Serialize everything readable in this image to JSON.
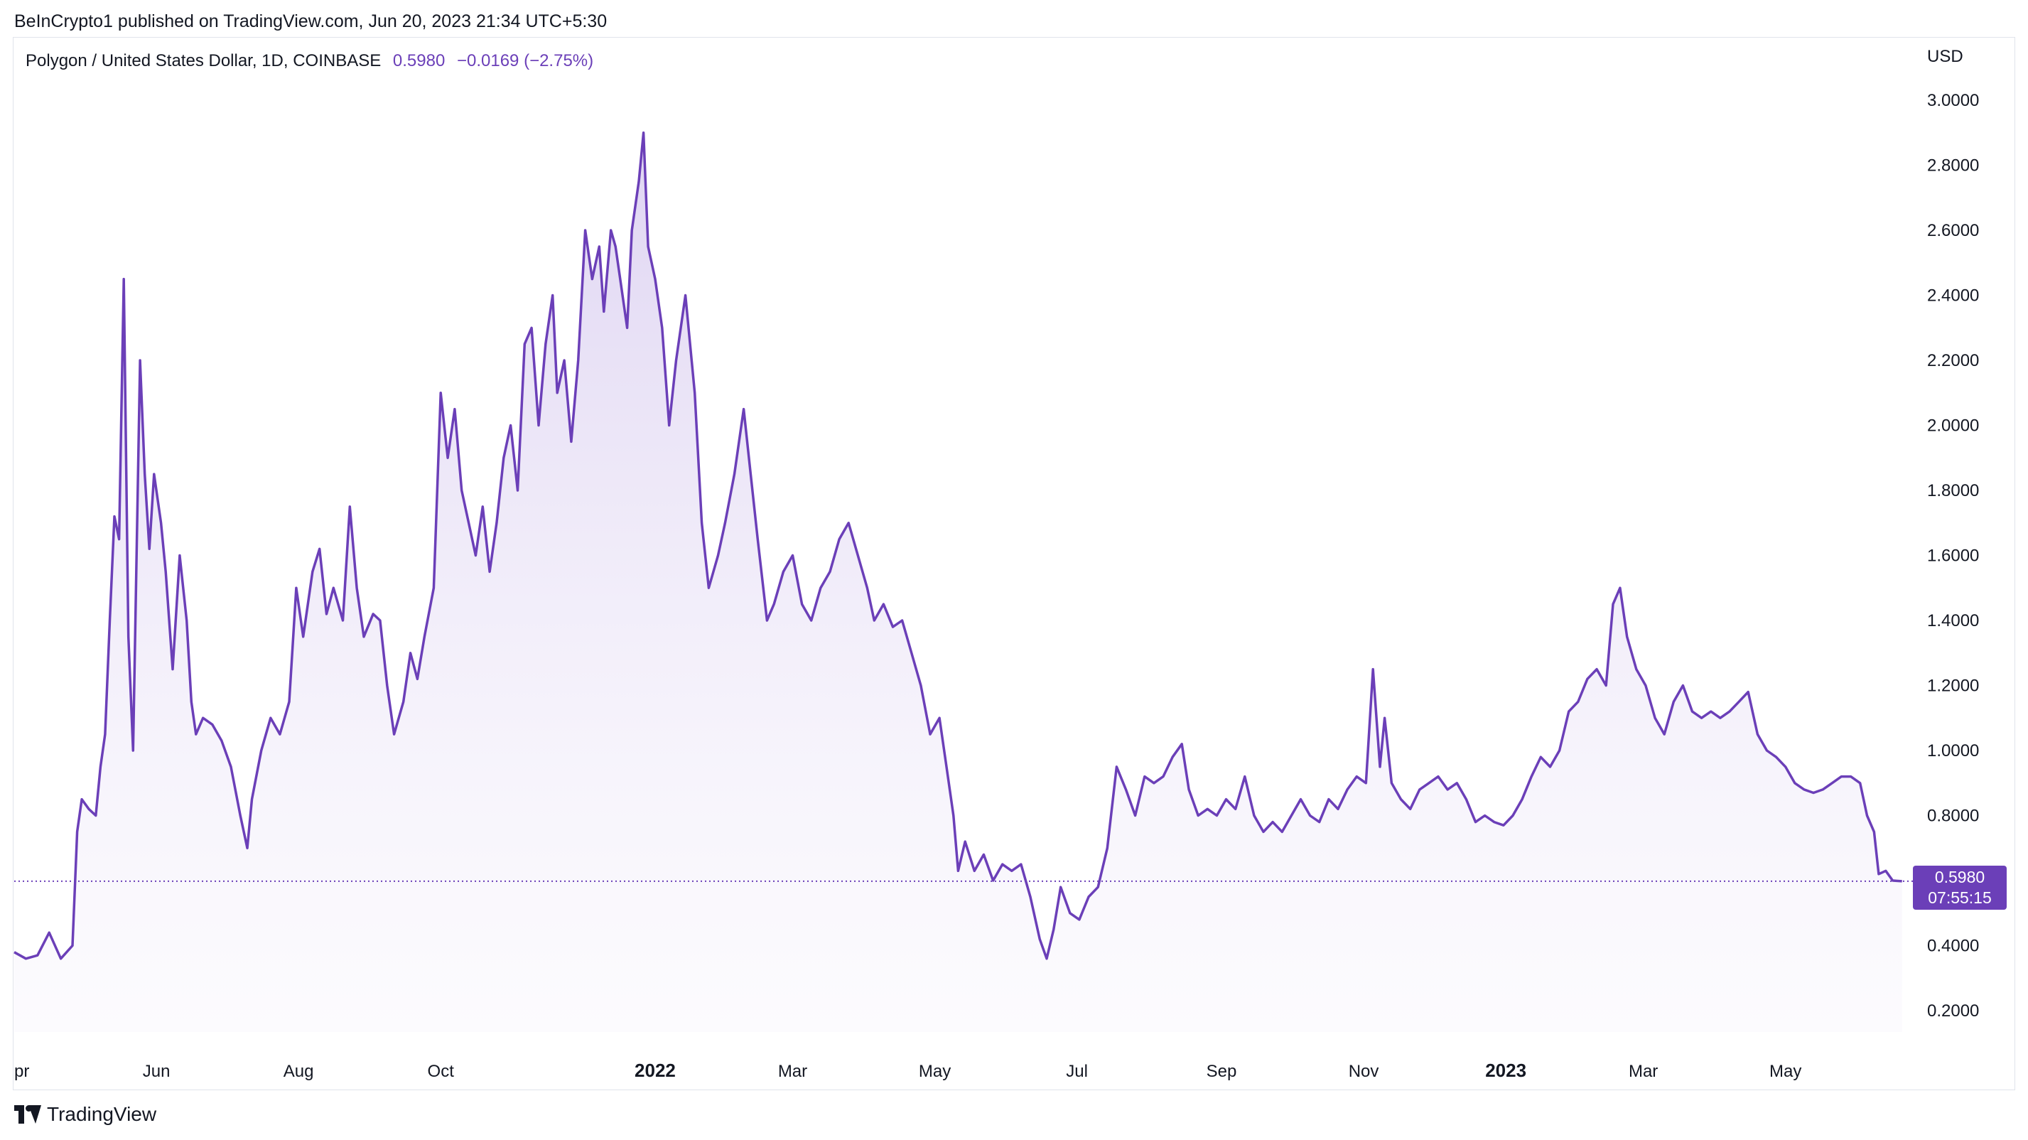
{
  "header": {
    "published": "BeInCrypto1 published on TradingView.com, Jun 20, 2023 21:34 UTC+5:30"
  },
  "legend": {
    "symbol": "Polygon / United States Dollar, 1D, COINBASE",
    "last": "0.5980",
    "change": "−0.0169 (−2.75%)"
  },
  "price_axis": {
    "currency": "USD"
  },
  "last_price_tag": {
    "price": "0.5980",
    "countdown": "07:55:15"
  },
  "brand": {
    "name": "TradingView",
    "logo_icon": "tradingview-logo-icon"
  },
  "colors": {
    "line": "#6b3fb8",
    "fill": "#ede7f6",
    "axis_text": "#131722"
  },
  "chart_data": {
    "type": "area",
    "title": "Polygon / United States Dollar, 1D, COINBASE",
    "xlabel": "",
    "ylabel": "",
    "ylim": [
      0.12,
      3.1
    ],
    "y_ticks": [
      "3.0000",
      "2.8000",
      "2.6000",
      "2.4000",
      "2.2000",
      "2.0000",
      "1.8000",
      "1.6000",
      "1.4000",
      "1.2000",
      "1.0000",
      "0.8000",
      "0.6000",
      "0.4000",
      "0.2000"
    ],
    "x_ticks": [
      {
        "label": "pr",
        "x": "2021-04-01",
        "bold": false
      },
      {
        "label": "Jun",
        "x": "2021-06-01",
        "bold": false
      },
      {
        "label": "Aug",
        "x": "2021-08-01",
        "bold": false
      },
      {
        "label": "Oct",
        "x": "2021-10-01",
        "bold": false
      },
      {
        "label": "2022",
        "x": "2022-01-01",
        "bold": true
      },
      {
        "label": "Mar",
        "x": "2022-03-01",
        "bold": false
      },
      {
        "label": "May",
        "x": "2022-05-01",
        "bold": false
      },
      {
        "label": "Jul",
        "x": "2022-07-01",
        "bold": false
      },
      {
        "label": "Sep",
        "x": "2022-09-01",
        "bold": false
      },
      {
        "label": "Nov",
        "x": "2022-11-01",
        "bold": false
      },
      {
        "label": "2023",
        "x": "2023-01-01",
        "bold": true
      },
      {
        "label": "Mar",
        "x": "2023-03-01",
        "bold": false
      },
      {
        "label": "May",
        "x": "2023-05-01",
        "bold": false
      }
    ],
    "grid": false,
    "last_price_line": 0.598,
    "series": [
      {
        "name": "",
        "points": [
          [
            "2021-04-01",
            0.38
          ],
          [
            "2021-04-06",
            0.36
          ],
          [
            "2021-04-11",
            0.37
          ],
          [
            "2021-04-16",
            0.44
          ],
          [
            "2021-04-21",
            0.36
          ],
          [
            "2021-04-26",
            0.4
          ],
          [
            "2021-04-28",
            0.75
          ],
          [
            "2021-04-30",
            0.85
          ],
          [
            "2021-05-03",
            0.82
          ],
          [
            "2021-05-06",
            0.8
          ],
          [
            "2021-05-08",
            0.95
          ],
          [
            "2021-05-10",
            1.05
          ],
          [
            "2021-05-12",
            1.4
          ],
          [
            "2021-05-14",
            1.72
          ],
          [
            "2021-05-16",
            1.65
          ],
          [
            "2021-05-18",
            2.45
          ],
          [
            "2021-05-20",
            1.35
          ],
          [
            "2021-05-22",
            1.0
          ],
          [
            "2021-05-25",
            2.2
          ],
          [
            "2021-05-27",
            1.85
          ],
          [
            "2021-05-29",
            1.62
          ],
          [
            "2021-05-31",
            1.85
          ],
          [
            "2021-06-03",
            1.7
          ],
          [
            "2021-06-05",
            1.55
          ],
          [
            "2021-06-08",
            1.25
          ],
          [
            "2021-06-11",
            1.6
          ],
          [
            "2021-06-14",
            1.4
          ],
          [
            "2021-06-16",
            1.15
          ],
          [
            "2021-06-18",
            1.05
          ],
          [
            "2021-06-21",
            1.1
          ],
          [
            "2021-06-25",
            1.08
          ],
          [
            "2021-06-29",
            1.03
          ],
          [
            "2021-07-03",
            0.95
          ],
          [
            "2021-07-07",
            0.8
          ],
          [
            "2021-07-10",
            0.7
          ],
          [
            "2021-07-12",
            0.85
          ],
          [
            "2021-07-16",
            1.0
          ],
          [
            "2021-07-20",
            1.1
          ],
          [
            "2021-07-24",
            1.05
          ],
          [
            "2021-07-28",
            1.15
          ],
          [
            "2021-07-31",
            1.5
          ],
          [
            "2021-08-03",
            1.35
          ],
          [
            "2021-08-07",
            1.55
          ],
          [
            "2021-08-10",
            1.62
          ],
          [
            "2021-08-13",
            1.42
          ],
          [
            "2021-08-16",
            1.5
          ],
          [
            "2021-08-20",
            1.4
          ],
          [
            "2021-08-23",
            1.75
          ],
          [
            "2021-08-26",
            1.5
          ],
          [
            "2021-08-29",
            1.35
          ],
          [
            "2021-09-02",
            1.42
          ],
          [
            "2021-09-05",
            1.4
          ],
          [
            "2021-09-08",
            1.2
          ],
          [
            "2021-09-11",
            1.05
          ],
          [
            "2021-09-15",
            1.15
          ],
          [
            "2021-09-18",
            1.3
          ],
          [
            "2021-09-21",
            1.22
          ],
          [
            "2021-09-24",
            1.35
          ],
          [
            "2021-09-28",
            1.5
          ],
          [
            "2021-10-01",
            2.1
          ],
          [
            "2021-10-04",
            1.9
          ],
          [
            "2021-10-07",
            2.05
          ],
          [
            "2021-10-10",
            1.8
          ],
          [
            "2021-10-13",
            1.7
          ],
          [
            "2021-10-16",
            1.6
          ],
          [
            "2021-10-19",
            1.75
          ],
          [
            "2021-10-22",
            1.55
          ],
          [
            "2021-10-25",
            1.7
          ],
          [
            "2021-10-28",
            1.9
          ],
          [
            "2021-10-31",
            2.0
          ],
          [
            "2021-11-03",
            1.8
          ],
          [
            "2021-11-06",
            2.25
          ],
          [
            "2021-11-09",
            2.3
          ],
          [
            "2021-11-12",
            2.0
          ],
          [
            "2021-11-15",
            2.25
          ],
          [
            "2021-11-18",
            2.4
          ],
          [
            "2021-11-20",
            2.1
          ],
          [
            "2021-11-23",
            2.2
          ],
          [
            "2021-11-26",
            1.95
          ],
          [
            "2021-11-29",
            2.2
          ],
          [
            "2021-12-02",
            2.6
          ],
          [
            "2021-12-05",
            2.45
          ],
          [
            "2021-12-08",
            2.55
          ],
          [
            "2021-12-10",
            2.35
          ],
          [
            "2021-12-13",
            2.6
          ],
          [
            "2021-12-15",
            2.55
          ],
          [
            "2021-12-17",
            2.45
          ],
          [
            "2021-12-20",
            2.3
          ],
          [
            "2021-12-22",
            2.6
          ],
          [
            "2021-12-25",
            2.75
          ],
          [
            "2021-12-27",
            2.9
          ],
          [
            "2021-12-29",
            2.55
          ],
          [
            "2022-01-01",
            2.45
          ],
          [
            "2022-01-04",
            2.3
          ],
          [
            "2022-01-07",
            2.0
          ],
          [
            "2022-01-10",
            2.2
          ],
          [
            "2022-01-14",
            2.4
          ],
          [
            "2022-01-18",
            2.1
          ],
          [
            "2022-01-21",
            1.7
          ],
          [
            "2022-01-24",
            1.5
          ],
          [
            "2022-01-28",
            1.6
          ],
          [
            "2022-01-31",
            1.7
          ],
          [
            "2022-02-04",
            1.85
          ],
          [
            "2022-02-08",
            2.05
          ],
          [
            "2022-02-11",
            1.85
          ],
          [
            "2022-02-14",
            1.65
          ],
          [
            "2022-02-18",
            1.4
          ],
          [
            "2022-02-21",
            1.45
          ],
          [
            "2022-02-25",
            1.55
          ],
          [
            "2022-03-01",
            1.6
          ],
          [
            "2022-03-05",
            1.45
          ],
          [
            "2022-03-09",
            1.4
          ],
          [
            "2022-03-13",
            1.5
          ],
          [
            "2022-03-17",
            1.55
          ],
          [
            "2022-03-21",
            1.65
          ],
          [
            "2022-03-25",
            1.7
          ],
          [
            "2022-03-29",
            1.6
          ],
          [
            "2022-04-02",
            1.5
          ],
          [
            "2022-04-05",
            1.4
          ],
          [
            "2022-04-09",
            1.45
          ],
          [
            "2022-04-13",
            1.38
          ],
          [
            "2022-04-17",
            1.4
          ],
          [
            "2022-04-21",
            1.3
          ],
          [
            "2022-04-25",
            1.2
          ],
          [
            "2022-04-29",
            1.05
          ],
          [
            "2022-05-03",
            1.1
          ],
          [
            "2022-05-06",
            0.95
          ],
          [
            "2022-05-09",
            0.8
          ],
          [
            "2022-05-11",
            0.63
          ],
          [
            "2022-05-14",
            0.72
          ],
          [
            "2022-05-18",
            0.63
          ],
          [
            "2022-05-22",
            0.68
          ],
          [
            "2022-05-26",
            0.6
          ],
          [
            "2022-05-30",
            0.65
          ],
          [
            "2022-06-03",
            0.63
          ],
          [
            "2022-06-07",
            0.65
          ],
          [
            "2022-06-11",
            0.55
          ],
          [
            "2022-06-15",
            0.42
          ],
          [
            "2022-06-18",
            0.36
          ],
          [
            "2022-06-21",
            0.45
          ],
          [
            "2022-06-24",
            0.58
          ],
          [
            "2022-06-28",
            0.5
          ],
          [
            "2022-07-02",
            0.48
          ],
          [
            "2022-07-06",
            0.55
          ],
          [
            "2022-07-10",
            0.58
          ],
          [
            "2022-07-14",
            0.7
          ],
          [
            "2022-07-18",
            0.95
          ],
          [
            "2022-07-22",
            0.88
          ],
          [
            "2022-07-26",
            0.8
          ],
          [
            "2022-07-30",
            0.92
          ],
          [
            "2022-08-03",
            0.9
          ],
          [
            "2022-08-07",
            0.92
          ],
          [
            "2022-08-11",
            0.98
          ],
          [
            "2022-08-15",
            1.02
          ],
          [
            "2022-08-18",
            0.88
          ],
          [
            "2022-08-22",
            0.8
          ],
          [
            "2022-08-26",
            0.82
          ],
          [
            "2022-08-30",
            0.8
          ],
          [
            "2022-09-03",
            0.85
          ],
          [
            "2022-09-07",
            0.82
          ],
          [
            "2022-09-11",
            0.92
          ],
          [
            "2022-09-15",
            0.8
          ],
          [
            "2022-09-19",
            0.75
          ],
          [
            "2022-09-23",
            0.78
          ],
          [
            "2022-09-27",
            0.75
          ],
          [
            "2022-10-01",
            0.8
          ],
          [
            "2022-10-05",
            0.85
          ],
          [
            "2022-10-09",
            0.8
          ],
          [
            "2022-10-13",
            0.78
          ],
          [
            "2022-10-17",
            0.85
          ],
          [
            "2022-10-21",
            0.82
          ],
          [
            "2022-10-25",
            0.88
          ],
          [
            "2022-10-29",
            0.92
          ],
          [
            "2022-11-02",
            0.9
          ],
          [
            "2022-11-05",
            1.25
          ],
          [
            "2022-11-08",
            0.95
          ],
          [
            "2022-11-10",
            1.1
          ],
          [
            "2022-11-13",
            0.9
          ],
          [
            "2022-11-17",
            0.85
          ],
          [
            "2022-11-21",
            0.82
          ],
          [
            "2022-11-25",
            0.88
          ],
          [
            "2022-11-29",
            0.9
          ],
          [
            "2022-12-03",
            0.92
          ],
          [
            "2022-12-07",
            0.88
          ],
          [
            "2022-12-11",
            0.9
          ],
          [
            "2022-12-15",
            0.85
          ],
          [
            "2022-12-19",
            0.78
          ],
          [
            "2022-12-23",
            0.8
          ],
          [
            "2022-12-27",
            0.78
          ],
          [
            "2022-12-31",
            0.77
          ],
          [
            "2023-01-04",
            0.8
          ],
          [
            "2023-01-08",
            0.85
          ],
          [
            "2023-01-12",
            0.92
          ],
          [
            "2023-01-16",
            0.98
          ],
          [
            "2023-01-20",
            0.95
          ],
          [
            "2023-01-24",
            1.0
          ],
          [
            "2023-01-28",
            1.12
          ],
          [
            "2023-02-01",
            1.15
          ],
          [
            "2023-02-05",
            1.22
          ],
          [
            "2023-02-09",
            1.25
          ],
          [
            "2023-02-13",
            1.2
          ],
          [
            "2023-02-16",
            1.45
          ],
          [
            "2023-02-19",
            1.5
          ],
          [
            "2023-02-22",
            1.35
          ],
          [
            "2023-02-26",
            1.25
          ],
          [
            "2023-03-02",
            1.2
          ],
          [
            "2023-03-06",
            1.1
          ],
          [
            "2023-03-10",
            1.05
          ],
          [
            "2023-03-14",
            1.15
          ],
          [
            "2023-03-18",
            1.2
          ],
          [
            "2023-03-22",
            1.12
          ],
          [
            "2023-03-26",
            1.1
          ],
          [
            "2023-03-30",
            1.12
          ],
          [
            "2023-04-03",
            1.1
          ],
          [
            "2023-04-07",
            1.12
          ],
          [
            "2023-04-11",
            1.15
          ],
          [
            "2023-04-15",
            1.18
          ],
          [
            "2023-04-19",
            1.05
          ],
          [
            "2023-04-23",
            1.0
          ],
          [
            "2023-04-27",
            0.98
          ],
          [
            "2023-05-01",
            0.95
          ],
          [
            "2023-05-05",
            0.9
          ],
          [
            "2023-05-09",
            0.88
          ],
          [
            "2023-05-13",
            0.87
          ],
          [
            "2023-05-17",
            0.88
          ],
          [
            "2023-05-21",
            0.9
          ],
          [
            "2023-05-25",
            0.92
          ],
          [
            "2023-05-29",
            0.92
          ],
          [
            "2023-06-02",
            0.9
          ],
          [
            "2023-06-05",
            0.8
          ],
          [
            "2023-06-08",
            0.75
          ],
          [
            "2023-06-10",
            0.62
          ],
          [
            "2023-06-13",
            0.63
          ],
          [
            "2023-06-16",
            0.6
          ],
          [
            "2023-06-20",
            0.598
          ]
        ]
      }
    ]
  }
}
